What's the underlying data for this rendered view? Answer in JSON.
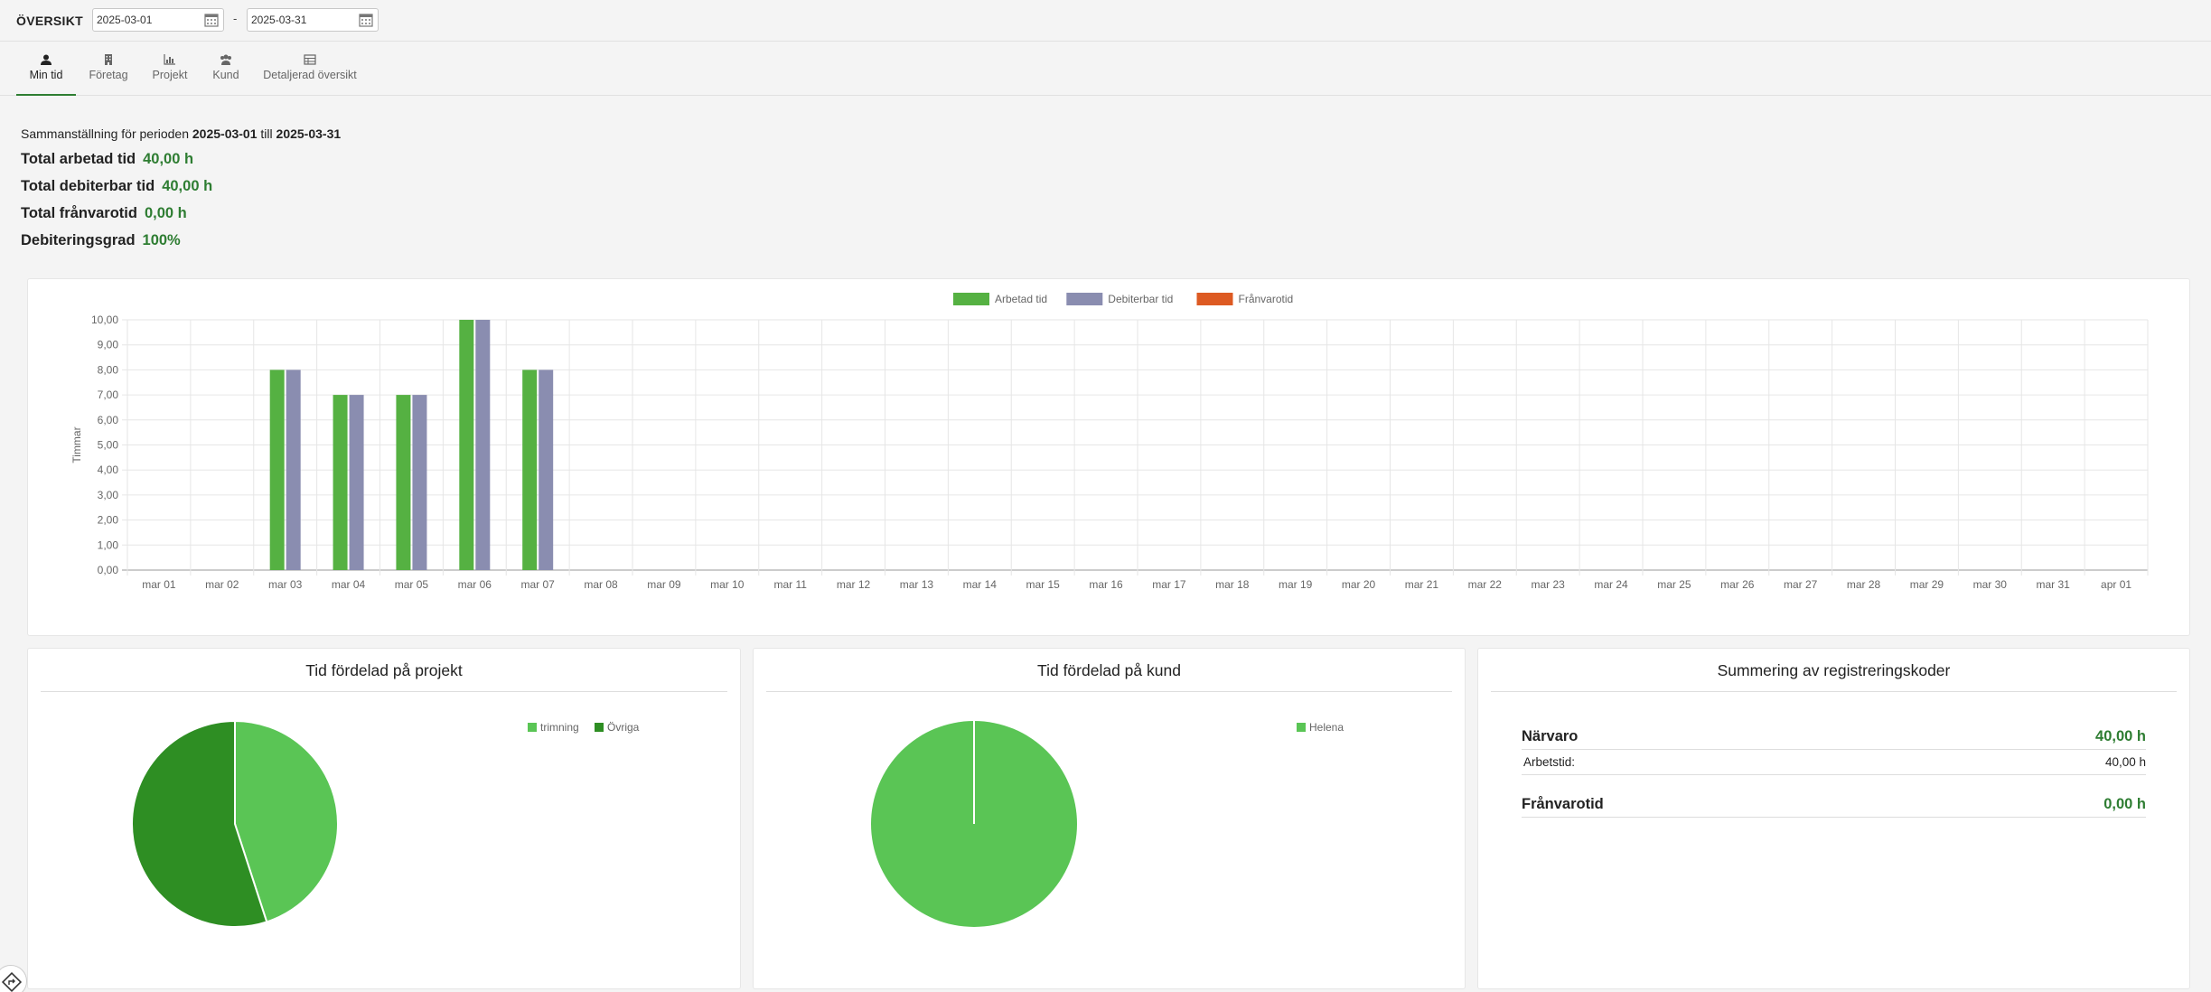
{
  "header": {
    "title": "ÖVERSIKT",
    "date_from": "2025-03-01",
    "date_to": "2025-03-31",
    "separator": "-"
  },
  "tabs": [
    {
      "label": "Min tid",
      "icon": "user-icon",
      "active": true
    },
    {
      "label": "Företag",
      "icon": "building-icon",
      "active": false
    },
    {
      "label": "Projekt",
      "icon": "bar-chart-icon",
      "active": false
    },
    {
      "label": "Kund",
      "icon": "users-icon",
      "active": false
    },
    {
      "label": "Detaljerad översikt",
      "icon": "table-icon",
      "active": false
    }
  ],
  "summary": {
    "intro_prefix": "Sammanställning för perioden",
    "from": "2025-03-01",
    "connector": "till",
    "to": "2025-03-31",
    "rows": [
      {
        "label": "Total arbetad tid",
        "value": "40,00 h"
      },
      {
        "label": "Total debiterbar tid",
        "value": "40,00 h"
      },
      {
        "label": "Total frånvarotid",
        "value": "0,00 h"
      },
      {
        "label": "Debiteringsgrad",
        "value": "100%"
      }
    ]
  },
  "colors": {
    "accent": "#2e7d32",
    "worked": "#55b142",
    "billable": "#8a8db0",
    "absence": "#dd5a22",
    "pie_light": "#5ac555",
    "pie_dark": "#2e8e23"
  },
  "chart_data": [
    {
      "type": "bar",
      "ylabel": "Timmar",
      "ylim": [
        0,
        10
      ],
      "yticks": [
        "0,00",
        "1,00",
        "2,00",
        "3,00",
        "4,00",
        "5,00",
        "6,00",
        "7,00",
        "8,00",
        "9,00",
        "10,00"
      ],
      "grid": true,
      "legend_position": "top",
      "categories": [
        "mar 01",
        "mar 02",
        "mar 03",
        "mar 04",
        "mar 05",
        "mar 06",
        "mar 07",
        "mar 08",
        "mar 09",
        "mar 10",
        "mar 11",
        "mar 12",
        "mar 13",
        "mar 14",
        "mar 15",
        "mar 16",
        "mar 17",
        "mar 18",
        "mar 19",
        "mar 20",
        "mar 21",
        "mar 22",
        "mar 23",
        "mar 24",
        "mar 25",
        "mar 26",
        "mar 27",
        "mar 28",
        "mar 29",
        "mar 30",
        "mar 31",
        "apr 01"
      ],
      "series": [
        {
          "name": "Arbetad tid",
          "color": "#55b142",
          "values": [
            0,
            0,
            8,
            7,
            7,
            10,
            8,
            0,
            0,
            0,
            0,
            0,
            0,
            0,
            0,
            0,
            0,
            0,
            0,
            0,
            0,
            0,
            0,
            0,
            0,
            0,
            0,
            0,
            0,
            0,
            0,
            0
          ]
        },
        {
          "name": "Debiterbar tid",
          "color": "#8a8db0",
          "values": [
            0,
            0,
            8,
            7,
            7,
            10,
            8,
            0,
            0,
            0,
            0,
            0,
            0,
            0,
            0,
            0,
            0,
            0,
            0,
            0,
            0,
            0,
            0,
            0,
            0,
            0,
            0,
            0,
            0,
            0,
            0,
            0
          ]
        },
        {
          "name": "Frånvarotid",
          "color": "#dd5a22",
          "values": [
            0,
            0,
            0,
            0,
            0,
            0,
            0,
            0,
            0,
            0,
            0,
            0,
            0,
            0,
            0,
            0,
            0,
            0,
            0,
            0,
            0,
            0,
            0,
            0,
            0,
            0,
            0,
            0,
            0,
            0,
            0,
            0
          ]
        }
      ]
    },
    {
      "type": "pie",
      "title": "Tid fördelad på projekt",
      "legend_position": "top-right",
      "slices": [
        {
          "name": "trimning",
          "value": 45,
          "color": "#5ac555"
        },
        {
          "name": "Övriga",
          "value": 55,
          "color": "#2e8e23"
        }
      ]
    },
    {
      "type": "pie",
      "title": "Tid fördelad på kund",
      "legend_position": "top-right",
      "slices": [
        {
          "name": "Helena",
          "value": 100,
          "color": "#5ac555"
        }
      ]
    }
  ],
  "registration": {
    "title": "Summering av registreringskoder",
    "groups": [
      {
        "label": "Närvaro",
        "value": "40,00 h",
        "items": [
          {
            "label": "Arbetstid:",
            "value": "40,00 h"
          }
        ]
      },
      {
        "label": "Frånvarotid",
        "value": "0,00 h",
        "items": []
      }
    ]
  }
}
